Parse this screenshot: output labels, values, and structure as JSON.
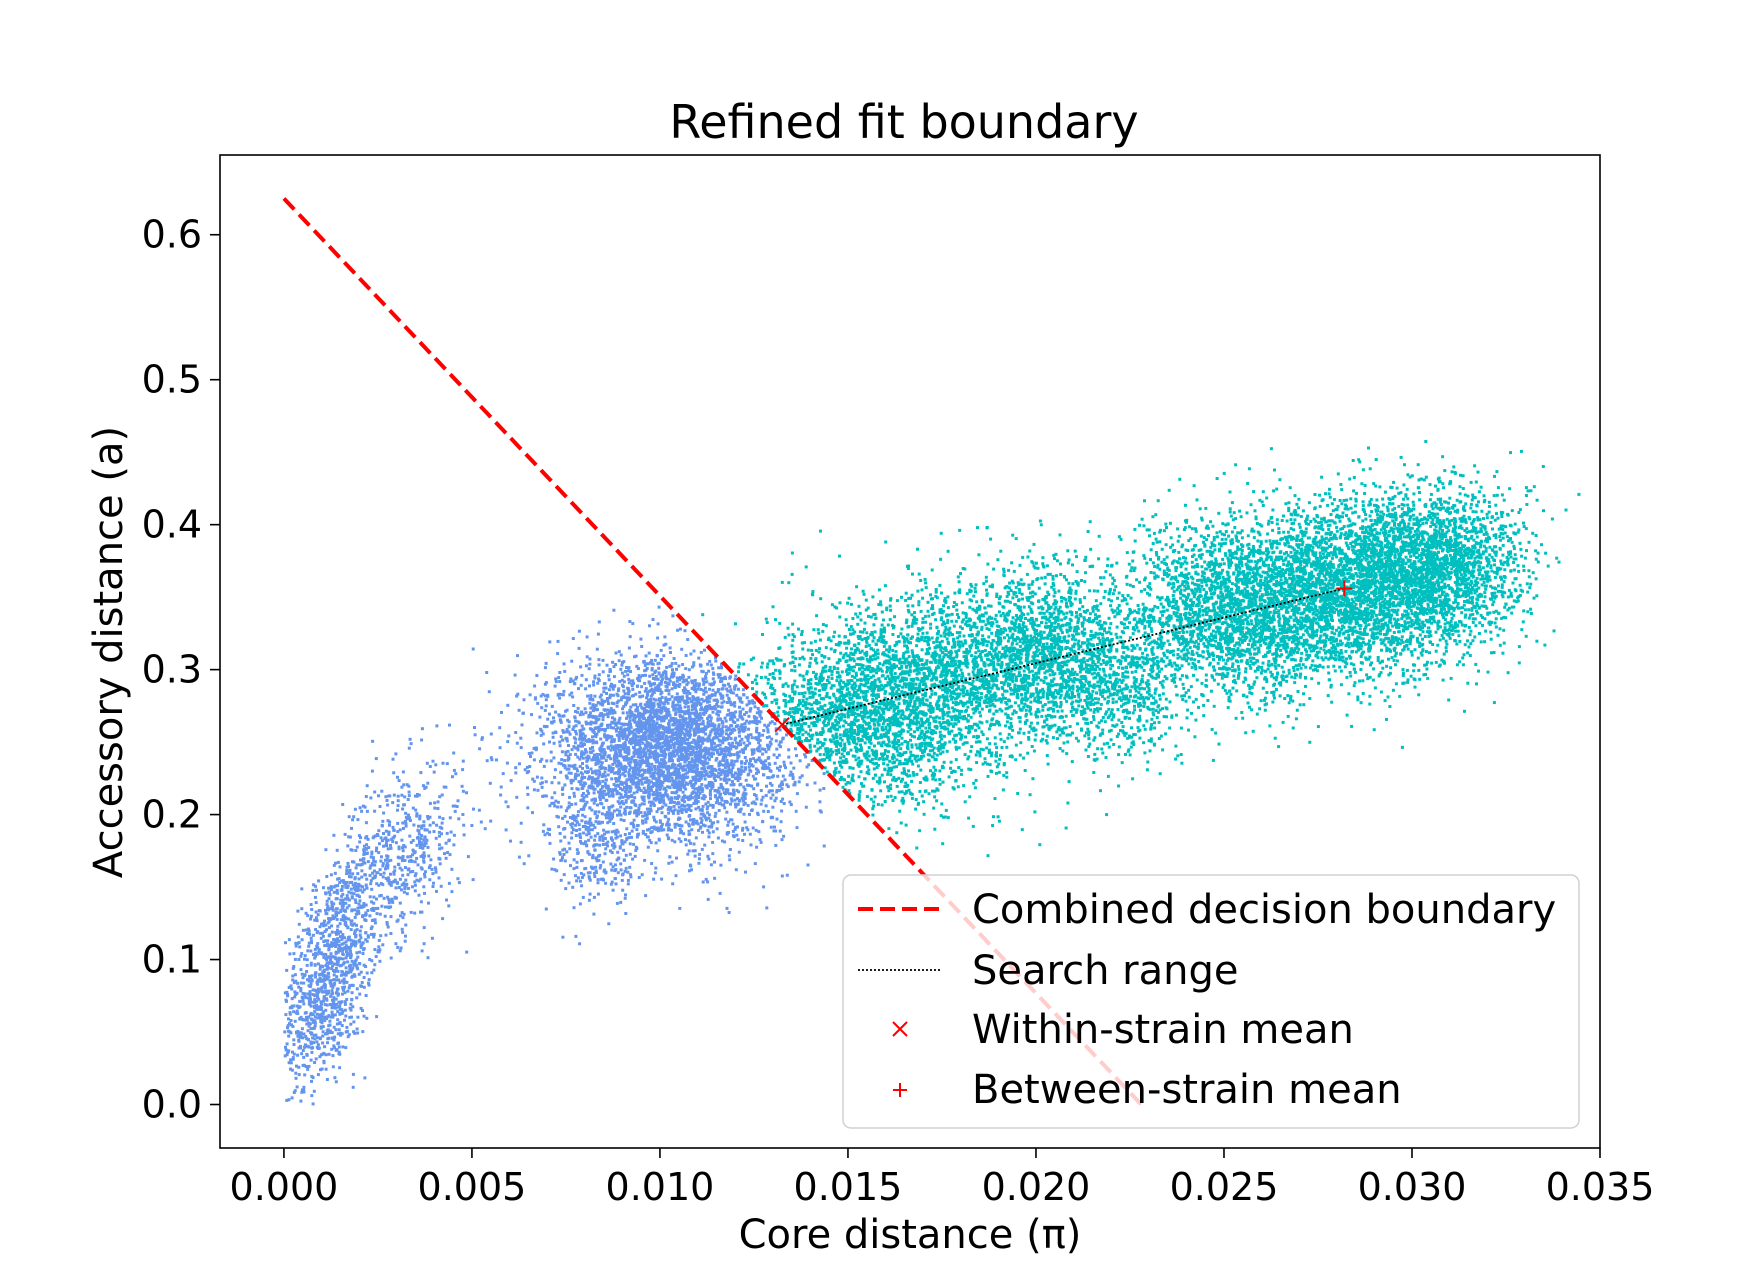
{
  "chart_data": {
    "type": "scatter",
    "title": "Refined fit boundary",
    "xlabel": "Core distance (π)",
    "ylabel": "Accessory distance (a)",
    "xlim": [
      -0.0017,
      0.035
    ],
    "ylim": [
      -0.03,
      0.655
    ],
    "xticks": [
      0.0,
      0.005,
      0.01,
      0.015,
      0.02,
      0.025,
      0.03,
      0.035
    ],
    "xtick_labels": [
      "0.000",
      "0.005",
      "0.010",
      "0.015",
      "0.020",
      "0.025",
      "0.030",
      "0.035"
    ],
    "yticks": [
      0.0,
      0.1,
      0.2,
      0.3,
      0.4,
      0.5,
      0.6
    ],
    "ytick_labels": [
      "0.0",
      "0.1",
      "0.2",
      "0.3",
      "0.4",
      "0.5",
      "0.6"
    ],
    "grid": false,
    "legend_position": "lower-right",
    "colors": {
      "within_points": "#6495ed",
      "between_points": "#00bfbf",
      "boundary": "#ff0000",
      "search": "#000000",
      "markers": "#ff0000"
    },
    "point_clusters": [
      {
        "group": "within",
        "cx": 0.0012,
        "cy": 0.09,
        "sx": 0.0007,
        "sy": 0.035,
        "n": 1200,
        "slope": 35
      },
      {
        "group": "within",
        "cx": 0.0032,
        "cy": 0.175,
        "sx": 0.0008,
        "sy": 0.03,
        "n": 500,
        "slope": 10
      },
      {
        "group": "within",
        "cx": 0.0102,
        "cy": 0.245,
        "sx": 0.0016,
        "sy": 0.032,
        "n": 4200,
        "slope": 0
      },
      {
        "group": "within",
        "cx": 0.0083,
        "cy": 0.18,
        "sx": 0.0006,
        "sy": 0.025,
        "n": 250,
        "slope": 0
      },
      {
        "group": "between",
        "cx": 0.0155,
        "cy": 0.265,
        "sx": 0.0017,
        "sy": 0.03,
        "n": 2200,
        "slope": 0
      },
      {
        "group": "between",
        "cx": 0.0175,
        "cy": 0.3,
        "sx": 0.0015,
        "sy": 0.03,
        "n": 1300,
        "slope": 0
      },
      {
        "group": "between",
        "cx": 0.0203,
        "cy": 0.31,
        "sx": 0.0012,
        "sy": 0.03,
        "n": 1600,
        "slope": 0
      },
      {
        "group": "between",
        "cx": 0.0225,
        "cy": 0.29,
        "sx": 0.0008,
        "sy": 0.025,
        "n": 500,
        "slope": 0
      },
      {
        "group": "between",
        "cx": 0.0253,
        "cy": 0.34,
        "sx": 0.0015,
        "sy": 0.03,
        "n": 2300,
        "slope": 0
      },
      {
        "group": "between",
        "cx": 0.0282,
        "cy": 0.355,
        "sx": 0.0015,
        "sy": 0.03,
        "n": 2400,
        "slope": 0
      },
      {
        "group": "between",
        "cx": 0.0305,
        "cy": 0.37,
        "sx": 0.0012,
        "sy": 0.028,
        "n": 2200,
        "slope": 0
      }
    ],
    "series": [
      {
        "name": "Combined decision boundary",
        "kind": "line",
        "style": "dashed",
        "color": "#ff0000",
        "x": [
          0.0,
          0.0228
        ],
        "y": [
          0.625,
          0.0
        ]
      },
      {
        "name": "Search range",
        "kind": "line",
        "style": "dotted",
        "color": "#000000",
        "x": [
          0.01325,
          0.0282
        ],
        "y": [
          0.262,
          0.356
        ]
      },
      {
        "name": "Within-strain mean",
        "kind": "marker",
        "marker": "x",
        "color": "#ff0000",
        "x": [
          0.01325
        ],
        "y": [
          0.262
        ]
      },
      {
        "name": "Between-strain mean",
        "kind": "marker",
        "marker": "+",
        "color": "#ff0000",
        "x": [
          0.0282
        ],
        "y": [
          0.356
        ]
      }
    ]
  }
}
